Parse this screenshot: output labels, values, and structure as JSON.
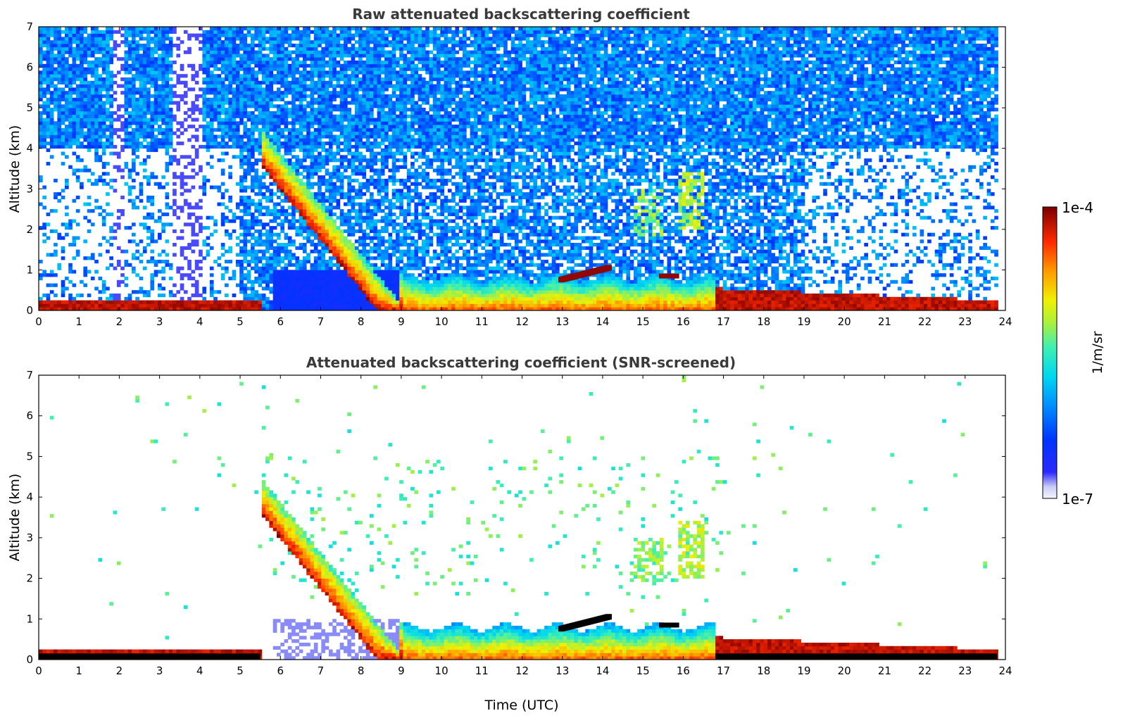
{
  "chart_data": [
    {
      "type": "heatmap",
      "title": "Raw attenuated backscattering coefficient",
      "xlabel": "",
      "ylabel": "Altitude (km)",
      "xlim": [
        0,
        24
      ],
      "ylim": [
        0,
        7
      ],
      "x_ticks": [
        "0",
        "1",
        "2",
        "3",
        "4",
        "5",
        "6",
        "7",
        "8",
        "9",
        "10",
        "11",
        "12",
        "13",
        "14",
        "15",
        "16",
        "17",
        "18",
        "19",
        "20",
        "21",
        "22",
        "23",
        "24"
      ],
      "y_ticks": [
        "0",
        "1",
        "2",
        "3",
        "4",
        "5",
        "6",
        "7"
      ],
      "grid": false,
      "colorscale": "log",
      "value_range": [
        1e-07,
        0.0001
      ],
      "features": {
        "surface_layer": {
          "x": [
            0,
            23.8
          ],
          "top_altitude_km": 0.25
        },
        "descending_layer": {
          "x": [
            5.5,
            9
          ],
          "top_altitude_km": [
            4.5,
            0.1
          ]
        },
        "boundary_layer": {
          "x": [
            9,
            16.8
          ],
          "top_altitude_km": 0.8
        },
        "elevated_cloud_layer": {
          "x": [
            12.9,
            14.1
          ],
          "altitude_km": [
            0.75,
            1.05
          ]
        },
        "small_cloud": {
          "x": [
            15.4,
            15.9
          ],
          "altitude_km": 0.85
        },
        "residual_layer": {
          "x": [
            16.8,
            23.8
          ],
          "top_altitude_km": [
            0.55,
            0.25
          ]
        },
        "aerosol_plume_1": {
          "x": [
            14.8,
            15.5
          ],
          "altitude_km": [
            1.8,
            3.0
          ]
        },
        "aerosol_plume_2": {
          "x": [
            15.9,
            16.5
          ],
          "altitude_km": [
            2.0,
            3.4
          ]
        },
        "data_gaps": [
          [
            3.35,
            4.05
          ],
          [
            1.85,
            2.1
          ]
        ]
      }
    },
    {
      "type": "heatmap",
      "title": "Attenuated backscattering coefficient (SNR-screened)",
      "xlabel": "Time (UTC)",
      "ylabel": "Altitude (km)",
      "xlim": [
        0,
        24
      ],
      "ylim": [
        0,
        7
      ],
      "x_ticks": [
        "0",
        "1",
        "2",
        "3",
        "4",
        "5",
        "6",
        "7",
        "8",
        "9",
        "10",
        "11",
        "12",
        "13",
        "14",
        "15",
        "16",
        "17",
        "18",
        "19",
        "20",
        "21",
        "22",
        "23",
        "24"
      ],
      "y_ticks": [
        "0",
        "1",
        "2",
        "3",
        "4",
        "5",
        "6",
        "7"
      ],
      "grid": false,
      "colorscale": "log",
      "value_range": [
        1e-07,
        0.0001
      ],
      "screened_color": "#000000"
    }
  ],
  "colorbar": {
    "label": "1/m/sr",
    "max_label": "1e-4",
    "min_label": "1e-7",
    "colormap": "jet"
  },
  "colors": {
    "title": "#3a3a3a",
    "axis": "#000000",
    "background": "#ffffff"
  }
}
